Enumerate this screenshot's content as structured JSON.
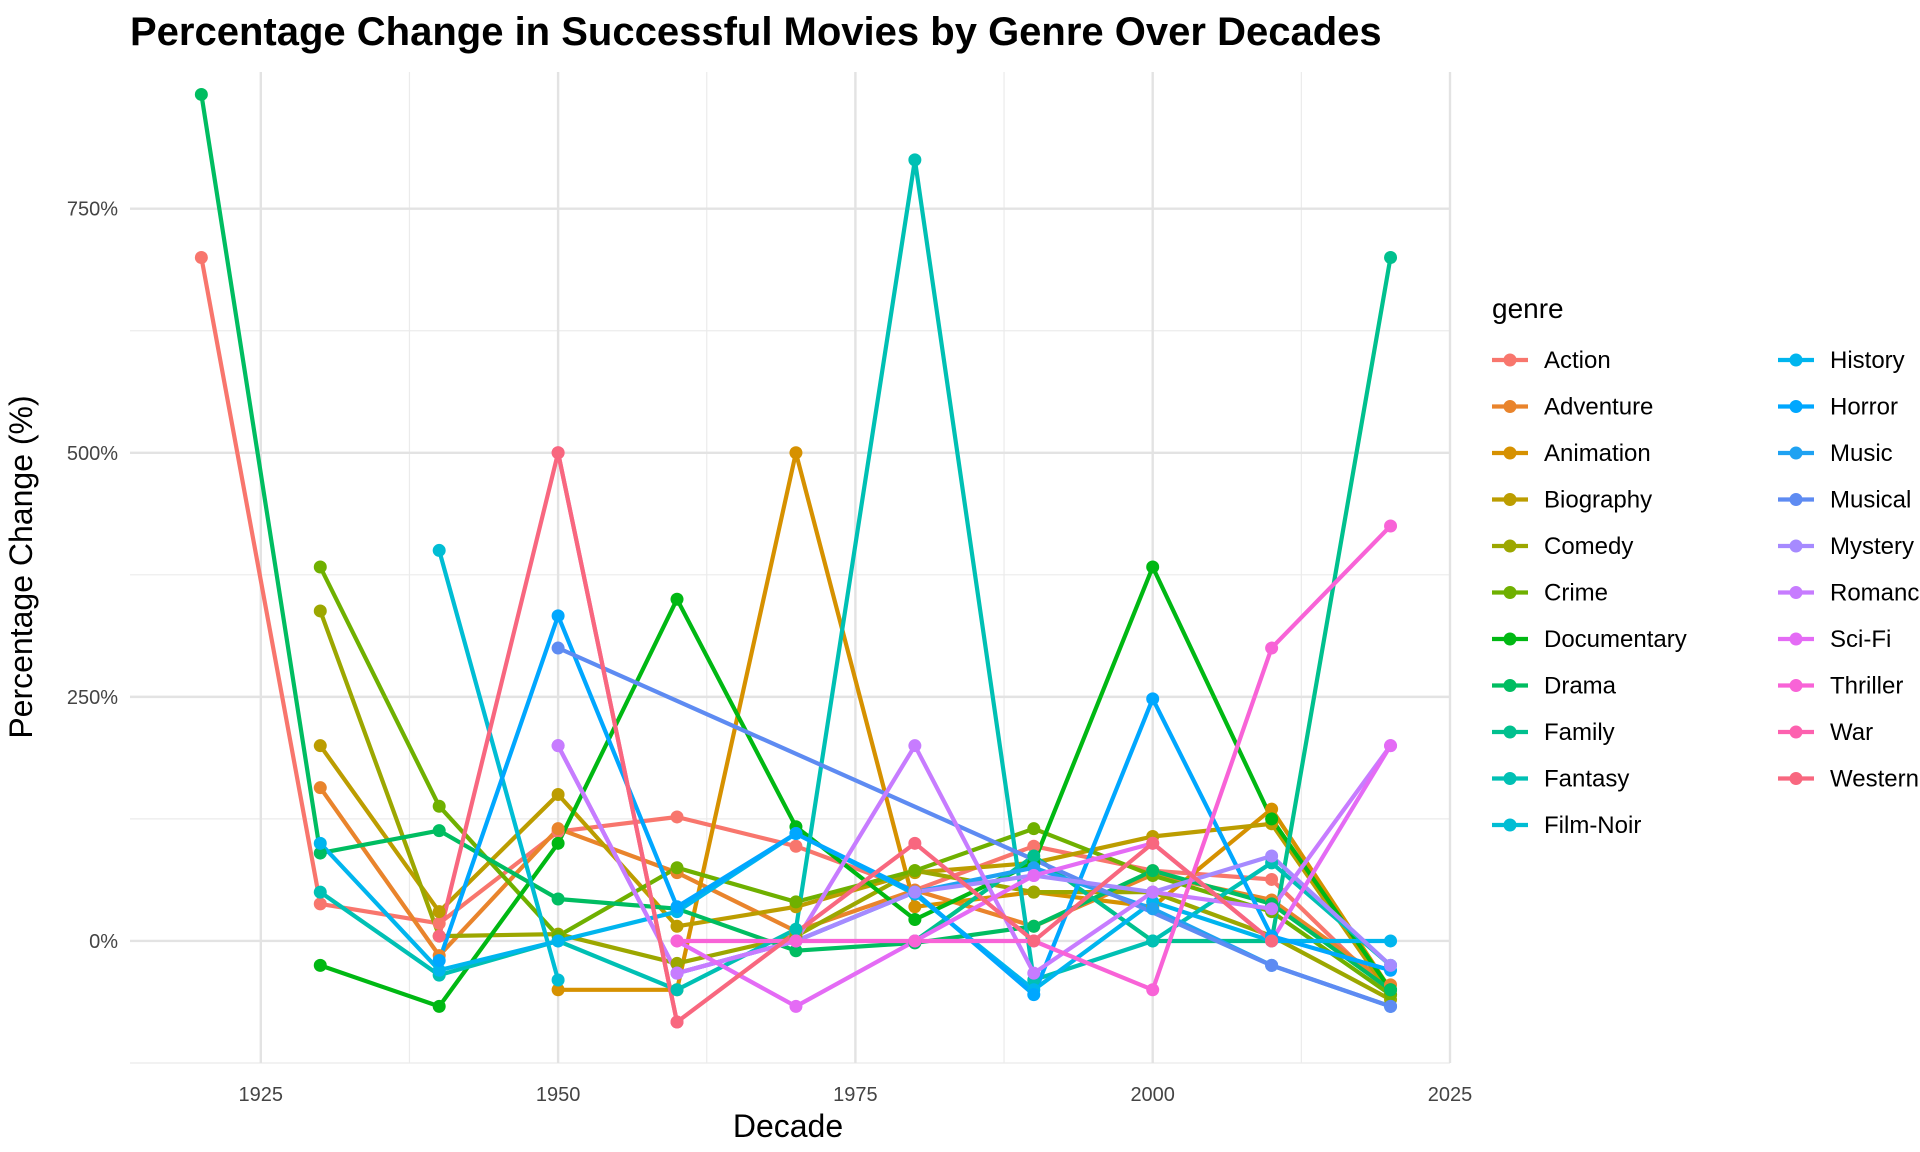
{
  "chart_data": {
    "type": "line",
    "title": "Percentage Change in Successful Movies by Genre Over Decades",
    "xlabel": "Decade",
    "ylabel": "Percentage Change (%)",
    "xlim": [
      1914,
      2025
    ],
    "ylim": [
      -125,
      890
    ],
    "x_ticks": [
      1925,
      1950,
      1975,
      2000,
      2025
    ],
    "x_minor_ticks": [
      1937.5,
      1962.5,
      1987.5,
      2012.5
    ],
    "y_ticks": [
      0,
      250,
      500,
      750
    ],
    "y_tick_labels": [
      "0%",
      "250%",
      "500%",
      "750%"
    ],
    "y_minor_ticks": [
      -125,
      125,
      375,
      625
    ],
    "grid": true,
    "legend": {
      "title": "genre",
      "position": "right",
      "columns": 2
    },
    "series": [
      {
        "name": "Action",
        "color": "#F8766D",
        "points": [
          [
            1920,
            700
          ],
          [
            1930,
            38
          ],
          [
            1940,
            18
          ],
          [
            1950,
            112
          ],
          [
            1960,
            127
          ],
          [
            1970,
            97
          ],
          [
            1980,
            52
          ],
          [
            1990,
            97
          ],
          [
            2000,
            72
          ],
          [
            2010,
            63
          ],
          [
            2020,
            -55
          ]
        ]
      },
      {
        "name": "Adventure",
        "color": "#E9842C",
        "points": [
          [
            1930,
            157
          ],
          [
            1940,
            -15
          ],
          [
            1950,
            115
          ],
          [
            1960,
            70
          ],
          [
            1970,
            10
          ],
          [
            1980,
            52
          ],
          [
            1990,
            15
          ],
          [
            2000,
            68
          ],
          [
            2010,
            42
          ],
          [
            2020,
            -45
          ]
        ]
      },
      {
        "name": "Animation",
        "color": "#D69100",
        "points": [
          [
            1950,
            -50
          ],
          [
            1960,
            -50
          ],
          [
            1970,
            500
          ],
          [
            1980,
            35
          ],
          [
            1990,
            50
          ],
          [
            2000,
            35
          ],
          [
            2010,
            135
          ],
          [
            2020,
            -50
          ]
        ]
      },
      {
        "name": "Biography",
        "color": "#BC9D00",
        "points": [
          [
            1930,
            200
          ],
          [
            1940,
            30
          ],
          [
            1950,
            150
          ],
          [
            1960,
            15
          ],
          [
            1970,
            35
          ],
          [
            1980,
            70
          ],
          [
            1990,
            80
          ],
          [
            2000,
            107
          ],
          [
            2010,
            120
          ],
          [
            2020,
            -55
          ]
        ]
      },
      {
        "name": "Comedy",
        "color": "#9CA700",
        "points": [
          [
            1930,
            338
          ],
          [
            1940,
            5
          ],
          [
            1950,
            7
          ],
          [
            1960,
            -23
          ],
          [
            1970,
            5
          ],
          [
            1980,
            72
          ],
          [
            1990,
            50
          ],
          [
            2000,
            50
          ],
          [
            2010,
            5
          ],
          [
            2020,
            -60
          ]
        ]
      },
      {
        "name": "Crime",
        "color": "#6FB000",
        "points": [
          [
            1930,
            383
          ],
          [
            1940,
            138
          ],
          [
            1950,
            5
          ],
          [
            1960,
            75
          ],
          [
            1970,
            40
          ],
          [
            1980,
            72
          ],
          [
            1990,
            115
          ],
          [
            2000,
            67
          ],
          [
            2010,
            30
          ],
          [
            2020,
            -55
          ]
        ]
      },
      {
        "name": "Documentary",
        "color": "#00B813",
        "points": [
          [
            1930,
            -25
          ],
          [
            1940,
            -67
          ],
          [
            1950,
            100
          ],
          [
            1960,
            350
          ],
          [
            1970,
            117
          ],
          [
            1980,
            22
          ],
          [
            1990,
            80
          ],
          [
            2000,
            383
          ],
          [
            2010,
            125
          ],
          [
            2020,
            -50
          ]
        ]
      },
      {
        "name": "Drama",
        "color": "#00BD61",
        "points": [
          [
            1920,
            867
          ],
          [
            1930,
            90
          ],
          [
            1940,
            113
          ],
          [
            1950,
            43
          ],
          [
            1960,
            33
          ],
          [
            1970,
            -10
          ],
          [
            1980,
            -2
          ],
          [
            1990,
            15
          ],
          [
            2000,
            72
          ],
          [
            2010,
            38
          ],
          [
            2020,
            -50
          ]
        ]
      },
      {
        "name": "Family",
        "color": "#00C08E",
        "points": [
          [
            1980,
            0
          ],
          [
            1990,
            87
          ],
          [
            2000,
            0
          ],
          [
            2010,
            0
          ],
          [
            2020,
            700
          ]
        ]
      },
      {
        "name": "Fantasy",
        "color": "#00C0B4",
        "points": [
          [
            1930,
            50
          ],
          [
            1940,
            -35
          ],
          [
            1950,
            0
          ],
          [
            1960,
            -50
          ],
          [
            1970,
            12
          ],
          [
            1980,
            800
          ],
          [
            1990,
            -40
          ],
          [
            2000,
            0
          ],
          [
            2010,
            80
          ],
          [
            2020,
            -25
          ]
        ]
      },
      {
        "name": "Film-Noir",
        "color": "#00BDD4",
        "points": [
          [
            1940,
            400
          ],
          [
            1950,
            -40
          ]
        ]
      },
      {
        "name": "History",
        "color": "#00B5EE",
        "points": [
          [
            1930,
            100
          ],
          [
            1940,
            -30
          ],
          [
            1950,
            0
          ],
          [
            1960,
            30
          ],
          [
            1970,
            110
          ],
          [
            1980,
            48
          ],
          [
            1990,
            -50
          ],
          [
            2000,
            40
          ],
          [
            2010,
            0
          ],
          [
            2020,
            0
          ]
        ]
      },
      {
        "name": "Horror",
        "color": "#00A7FF",
        "points": [
          [
            1940,
            -20
          ],
          [
            1950,
            333
          ],
          [
            1960,
            35
          ],
          [
            1970,
            110
          ],
          [
            1980,
            50
          ],
          [
            1990,
            -55
          ],
          [
            2000,
            248
          ],
          [
            2010,
            5
          ],
          [
            2020,
            -30
          ]
        ]
      },
      {
        "name": "Music",
        "color": "#7F96FF",
        "points": [
          [
            1960,
            -33
          ],
          [
            1970,
            0
          ],
          [
            1980,
            50
          ],
          [
            1990,
            75
          ],
          [
            2000,
            33
          ],
          [
            2010,
            -25
          ],
          [
            2020,
            -67
          ]
        ],
        "color_override": "#1FA2F2"
      },
      {
        "name": "Musical",
        "color": "#5E8BF2",
        "points": [
          [
            1950,
            300
          ],
          [
            2010,
            -25
          ],
          [
            2020,
            -67
          ]
        ]
      },
      {
        "name": "Mystery",
        "color": "#A68AFF",
        "points": [
          [
            1950,
            200
          ],
          [
            1960,
            -33
          ],
          [
            1970,
            0
          ],
          [
            1980,
            50
          ],
          [
            1990,
            67
          ],
          [
            2000,
            50
          ],
          [
            2010,
            87
          ],
          [
            2020,
            -25
          ]
        ]
      },
      {
        "name": "Romance",
        "color": "#C77CFF",
        "points": [
          [
            1950,
            200
          ],
          [
            1960,
            -33
          ],
          [
            1970,
            0
          ],
          [
            1980,
            200
          ],
          [
            1990,
            -33
          ],
          [
            2000,
            50
          ],
          [
            2010,
            33
          ],
          [
            2020,
            200
          ]
        ]
      },
      {
        "name": "Sci-Fi",
        "color": "#E46BF5",
        "points": [
          [
            1960,
            0
          ],
          [
            1970,
            -67
          ],
          [
            1980,
            0
          ],
          [
            1990,
            67
          ],
          [
            2000,
            100
          ],
          [
            2010,
            0
          ],
          [
            2020,
            200
          ]
        ]
      },
      {
        "name": "Thriller",
        "color": "#F863D7",
        "points": [
          [
            1960,
            0
          ],
          [
            1970,
            0
          ],
          [
            1980,
            0
          ],
          [
            1990,
            0
          ],
          [
            2000,
            -50
          ],
          [
            2010,
            300
          ],
          [
            2020,
            425
          ]
        ]
      },
      {
        "name": "War",
        "color": "#FD61AF",
        "points": [
          [
            1950,
            500
          ],
          [
            1960,
            -83
          ]
        ]
      },
      {
        "name": "Western",
        "color": "#F8677F",
        "points": [
          [
            1940,
            5
          ],
          [
            1950,
            500
          ],
          [
            1960,
            -83
          ],
          [
            1980,
            100
          ],
          [
            1990,
            0
          ],
          [
            2000,
            100
          ],
          [
            2010,
            0
          ]
        ]
      }
    ]
  }
}
